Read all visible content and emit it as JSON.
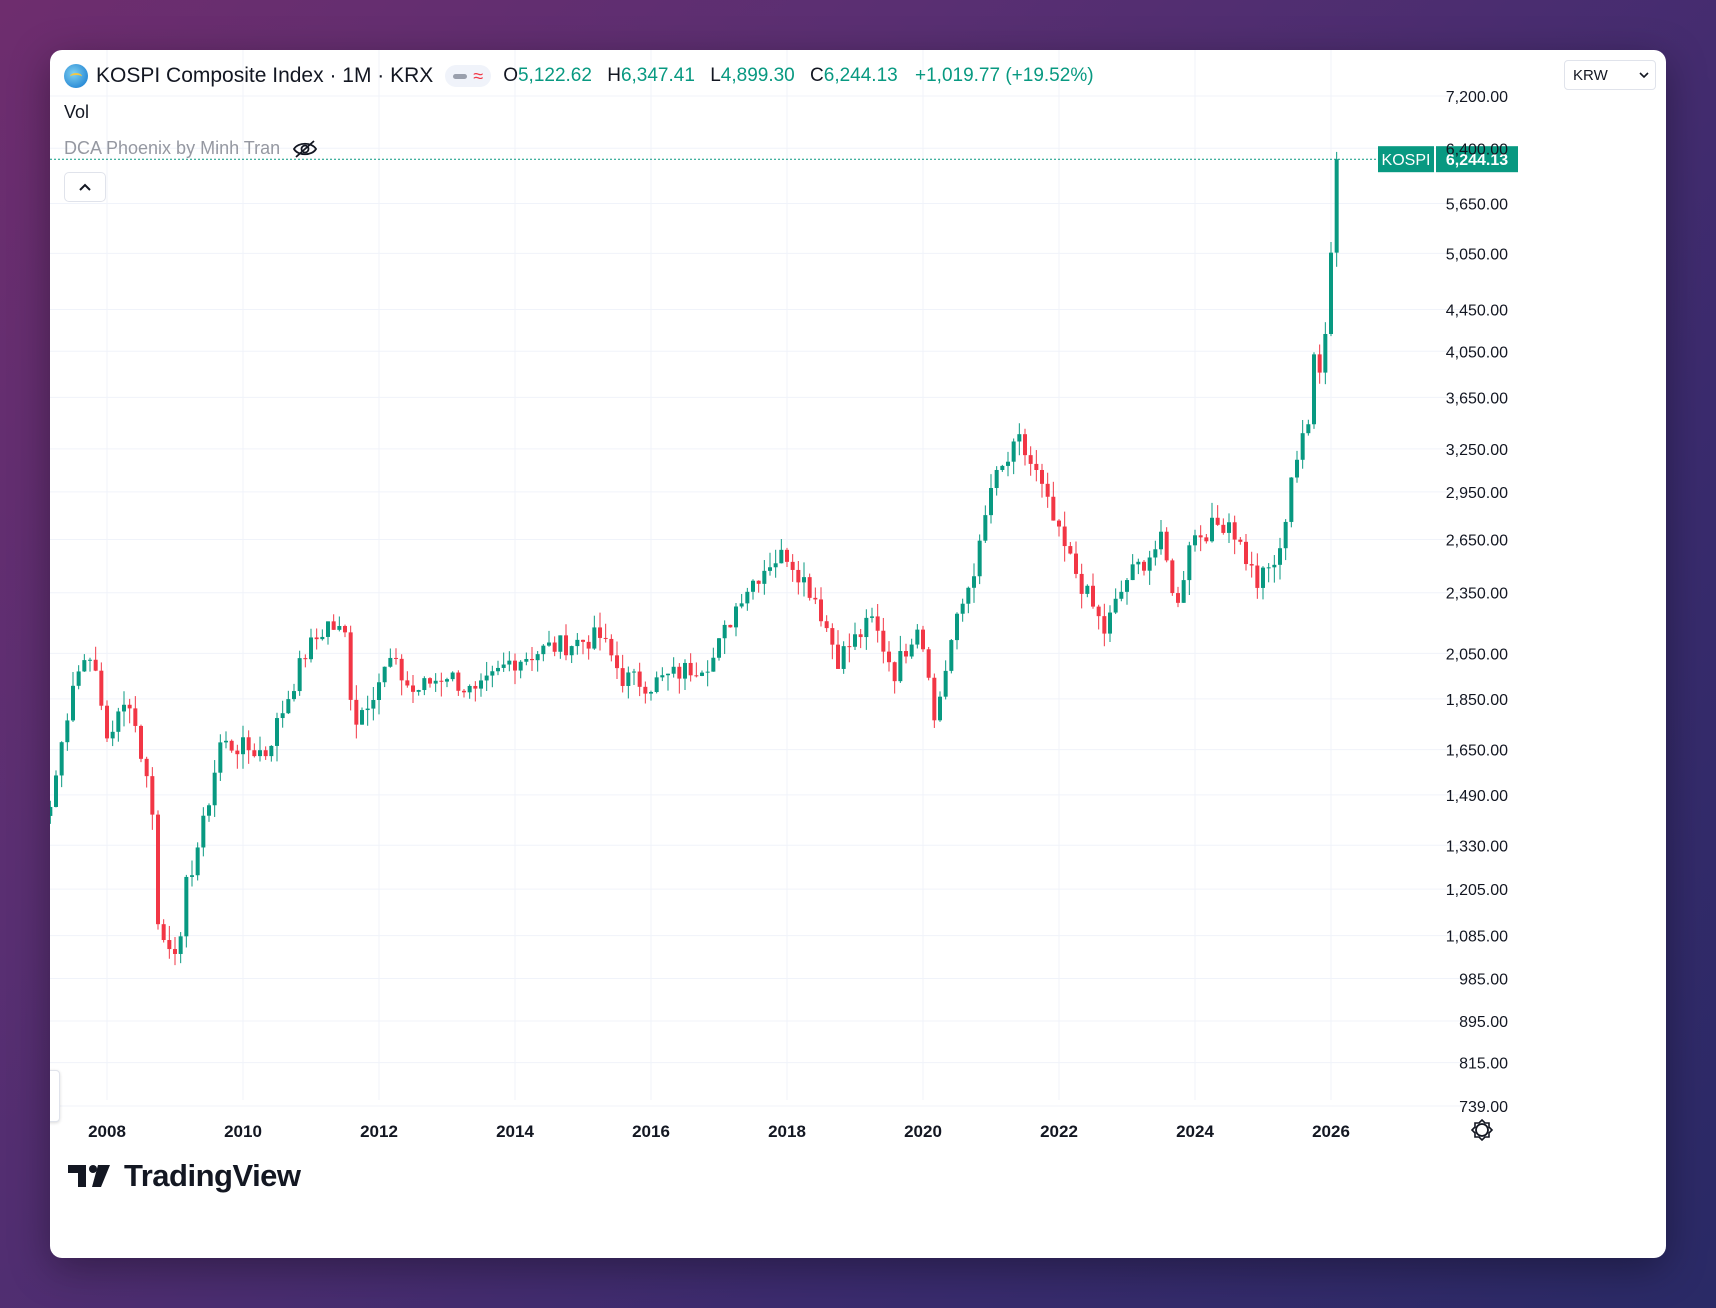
{
  "header": {
    "title": "KOSPI Composite Index · 1M · KRX",
    "ohlc": {
      "o_label": "O",
      "o": "5,122.62",
      "h_label": "H",
      "h": "6,347.41",
      "l_label": "L",
      "l": "4,899.30",
      "c_label": "C",
      "c": "6,244.13",
      "change": "+1,019.77 (+19.52%)"
    }
  },
  "vol_label": "Vol",
  "indicator_label": "DCA Phoenix by Minh Tran",
  "currency": "KRW",
  "brand": "TradingView",
  "price_tag": {
    "symbol": "KOSPI",
    "value": "6,244.13"
  },
  "colors": {
    "up": "#089981",
    "down": "#f23645",
    "accent": "#089981"
  },
  "icons": [
    "eye-off-icon",
    "chevron-up-icon",
    "chevron-down-icon",
    "gear-icon",
    "tradingview-logo-icon"
  ],
  "chart_data": {
    "type": "candlestick",
    "scale": "log",
    "interval": "1M",
    "x_tick_labels": [
      "2008",
      "2010",
      "2012",
      "2014",
      "2016",
      "2018",
      "2020",
      "2022",
      "2024",
      "2026"
    ],
    "y_tick_labels": [
      "7,200.00",
      "6,400.00",
      "5,650.00",
      "5,050.00",
      "4,450.00",
      "4,050.00",
      "3,650.00",
      "3,250.00",
      "2,950.00",
      "2,650.00",
      "2,350.00",
      "2,050.00",
      "1,850.00",
      "1,650.00",
      "1,490.00",
      "1,330.00",
      "1,205.00",
      "1,085.00",
      "985.00",
      "895.00",
      "815.00",
      "739.00"
    ],
    "last_price": 6244.13,
    "anchors": [
      [
        "2007-03",
        1450
      ],
      [
        "2007-07",
        1930
      ],
      [
        "2007-10",
        2064
      ],
      [
        "2008-01",
        1700
      ],
      [
        "2008-05",
        1850
      ],
      [
        "2008-09",
        1450
      ],
      [
        "2008-10",
        1110
      ],
      [
        "2008-11",
        1075
      ],
      [
        "2009-02",
        1060
      ],
      [
        "2009-03",
        1210
      ],
      [
        "2009-06",
        1390
      ],
      [
        "2009-09",
        1673
      ],
      [
        "2010-05",
        1640
      ],
      [
        "2010-12",
        2050
      ],
      [
        "2011-04",
        2192
      ],
      [
        "2011-07",
        2133
      ],
      [
        "2011-08",
        1880
      ],
      [
        "2011-09",
        1770
      ],
      [
        "2012-03",
        2014
      ],
      [
        "2012-07",
        1880
      ],
      [
        "2013-01",
        1960
      ],
      [
        "2013-06",
        1860
      ],
      [
        "2013-12",
        2011
      ],
      [
        "2014-07",
        2076
      ],
      [
        "2015-04",
        2127
      ],
      [
        "2015-08",
        1941
      ],
      [
        "2016-01",
        1912
      ],
      [
        "2016-12",
        2026
      ],
      [
        "2017-05",
        2347
      ],
      [
        "2017-10",
        2523
      ],
      [
        "2018-01",
        2566
      ],
      [
        "2018-06",
        2326
      ],
      [
        "2018-10",
        2029
      ],
      [
        "2019-04",
        2204
      ],
      [
        "2019-08",
        1967
      ],
      [
        "2019-12",
        2197
      ],
      [
        "2020-02",
        1987
      ],
      [
        "2020-03",
        1754
      ],
      [
        "2020-06",
        2108
      ],
      [
        "2020-11",
        2591
      ],
      [
        "2021-01",
        2976
      ],
      [
        "2021-06",
        3296
      ],
      [
        "2021-09",
        3068
      ],
      [
        "2022-01",
        2663
      ],
      [
        "2022-06",
        2332
      ],
      [
        "2022-09",
        2155
      ],
      [
        "2023-01",
        2425
      ],
      [
        "2023-07",
        2632
      ],
      [
        "2023-10",
        2277
      ],
      [
        "2023-12",
        2655
      ],
      [
        "2024-07",
        2770
      ],
      [
        "2024-12",
        2399
      ],
      [
        "2025-04",
        2556
      ],
      [
        "2025-06",
        3071
      ],
      [
        "2025-09",
        3424
      ],
      [
        "2025-10",
        4107
      ],
      [
        "2025-11",
        3926
      ],
      [
        "2025-12",
        4214
      ],
      [
        "2026-01",
        5122
      ],
      [
        "2026-02",
        6244
      ]
    ]
  }
}
